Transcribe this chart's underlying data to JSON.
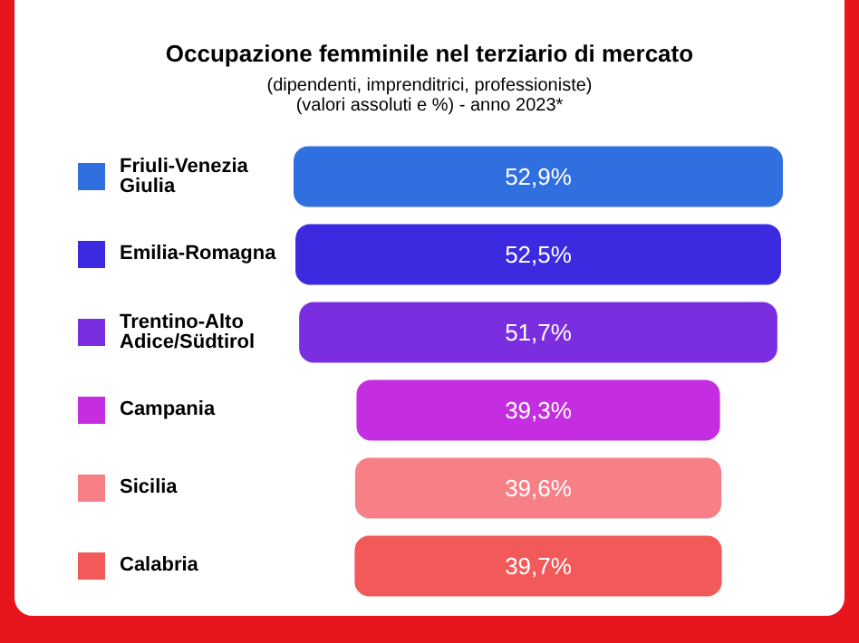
{
  "chart_data": {
    "type": "other",
    "title": "Occupazione femminile nel terziario di mercato",
    "subtitle": "(dipendenti, imprenditrici, professioniste)\n(valori assoluti e %) - anno 2023*",
    "categories": [
      "Friuli-Venezia Giulia",
      "Emilia-Romagna",
      "Trentino-Alto Adice/Südtirol",
      "Campania",
      "Sicilia",
      "Calabria"
    ],
    "values": [
      52.9,
      52.5,
      51.7,
      39.3,
      39.6,
      39.7
    ],
    "value_labels": [
      "52,9%",
      "52,5%",
      "51,7%",
      "39,3%",
      "39,6%",
      "39,7%"
    ],
    "colors": [
      "#2f6fe0",
      "#3b2ae0",
      "#7b2ee0",
      "#c42ee0",
      "#f77f86",
      "#f25a5a"
    ]
  }
}
